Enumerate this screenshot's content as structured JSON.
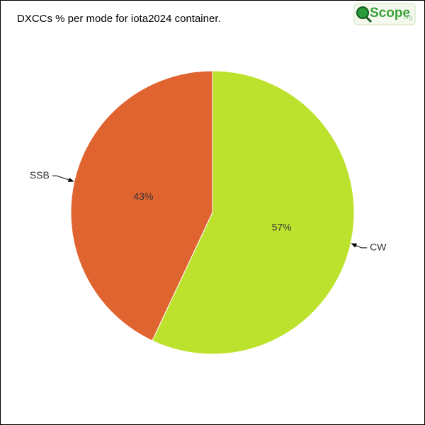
{
  "chart_data": {
    "type": "pie",
    "title": "DXCCs % per mode for iota2024 container.",
    "categories": [
      "CW",
      "SSB"
    ],
    "values": [
      57,
      43
    ],
    "value_labels": [
      "57%",
      "43%"
    ],
    "colors": [
      "#bde22e",
      "#e06430"
    ]
  },
  "logo": {
    "name": "Scope",
    "domain": ".org"
  }
}
